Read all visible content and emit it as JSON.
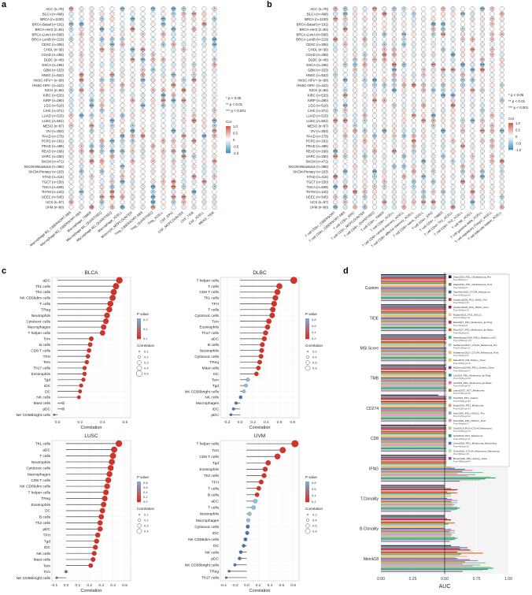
{
  "panel_labels": [
    "a",
    "b",
    "c",
    "d"
  ],
  "colorbar": {
    "title": "Cor",
    "ticks": [
      "1.0",
      "0.5",
      "0",
      "-0.5",
      "-1.0"
    ]
  },
  "significance_legend": [
    "* p < 0.05",
    "** p < 0.01",
    "*** p < 0.001"
  ],
  "c_legend": {
    "pvalue_title": "P value",
    "cor_title": "Correlation"
  },
  "chart_data": [
    {
      "type": "heatmap",
      "panel": "a",
      "rows": [
        "ACC (n=79)",
        "BLCA (n=408)",
        "BRCA (n=1100)",
        "BRCA-Basal (n=191)",
        "BRCA-Her2 (n=82)",
        "BRCA-LumA (n=568)",
        "BRCA-LumB (n=219)",
        "CESC (n=306)",
        "CHOL (n=36)",
        "COAD (n=458)",
        "DLBC (n=48)",
        "ESCA (n=185)",
        "GBM (n=153)",
        "HNSC (n=522)",
        "HNSC-HPV+ (n=98)",
        "HNSC-HPV- (n=422)",
        "KICH (n=66)",
        "KIRC (n=533)",
        "KIRP (n=290)",
        "LGG (n=516)",
        "LIHC (n=371)",
        "LUAD (n=515)",
        "LUSC (n=501)",
        "MESO (n=87)",
        "OV (n=303)",
        "PAAD (n=179)",
        "PCPG (n=181)",
        "PRAD (n=498)",
        "READ (n=166)",
        "SARC (n=260)",
        "SKCM (n=471)",
        "SKCM-Metastasis (n=368)",
        "SKCM-Primary (n=103)",
        "STAD (n=415)",
        "TGCT (n=150)",
        "THCA (n=509)",
        "THYM (n=120)",
        "UCEC (n=545)",
        "UCS (n=57)",
        "UVM (n=80)"
      ],
      "columns": [
        "Macrophage M1_CIBERSORT-ABS",
        "Macrophage M2_CIBERSORT-ABS",
        "Macrophage_TIMER",
        "Macrophage M1_QUANTISEQ",
        "Macrophage M2_QUANTISEQ",
        "Macrophage_XCELL",
        "Monocyte_MCPCOUNTER",
        "Treg_CIBERSORT-ABS",
        "Treg_QUANTISEQ",
        "Treg_XCELL",
        "CAF_EPIC",
        "CAF_MCPCOUNTER",
        "CAF_TIDE",
        "CAF_XCELL",
        "MDSC_TIDE"
      ],
      "range": [
        -1,
        1
      ]
    },
    {
      "type": "heatmap",
      "panel": "b",
      "rows": [
        "ACC (n=79)",
        "BLCA (n=408)",
        "BRCA (n=1100)",
        "BRCA-Basal (n=191)",
        "BRCA-Her2 (n=82)",
        "BRCA-LumA (n=568)",
        "BRCA-LumB (n=219)",
        "CESC (n=306)",
        "CHOL (n=36)",
        "COAD (n=458)",
        "DLBC (n=48)",
        "ESCA (n=185)",
        "GBM (n=153)",
        "HNSC (n=522)",
        "HNSC-HPV+ (n=98)",
        "HNSC-HPV- (n=422)",
        "KICH (n=66)",
        "KIRC (n=533)",
        "KIRP (n=290)",
        "LGG (n=516)",
        "LIHC (n=371)",
        "LUAD (n=515)",
        "LUSC (n=501)",
        "MESO (n=87)",
        "OV (n=303)",
        "PAAD (n=179)",
        "PCPG (n=181)",
        "PRAD (n=498)",
        "READ (n=166)",
        "SARC (n=260)",
        "SKCM (n=471)",
        "SKCM-Metastasis (n=368)",
        "SKCM-Primary (n=103)",
        "STAD (n=415)",
        "TGCT (n=150)",
        "THCA (n=509)",
        "THYM (n=120)",
        "UCEC (n=545)",
        "UCS (n=57)",
        "UVM (n=80)"
      ],
      "columns": [
        "T cell CD8+_CIBERSORT",
        "T cell CD8+_CIBERSORT-ABS",
        "T cell CD8+_EPIC",
        "T cell CD8+_MCPCOUNTER",
        "T cell CD8+_QUANTISEQ",
        "T cell CD8+_TIMER",
        "T cell CD8+_XCELL",
        "T cell CD8+ central memory_XCELL",
        "T cell CD8+ effector memory_XCELL",
        "T cell CD8+ naive_XCELL",
        "T cell CD4+_EPIC",
        "T cell CD4+_TIMER",
        "T cell CD4+ Th1_XCELL",
        "T cell CD4+ Th2_XCELL",
        "T cell NK_XCELL",
        "T cell gamma delta_XCELL",
        "T cell regulatory (Tregs)_XCELL",
        "T cell follicular helper_XCELL"
      ],
      "range": [
        -1,
        1
      ]
    },
    {
      "type": "scatter",
      "panel": "c",
      "title": "BLCA",
      "xlabel": "Correlation",
      "xlim": [
        -0.05,
        0.65
      ],
      "xticks": [
        "0.0",
        "0.2",
        "0.4",
        "0.6"
      ],
      "pvalue_legend": [
        "0.3",
        "0.2",
        "0.1"
      ],
      "size_legend": [
        "0.1",
        "0.2",
        "0.3",
        "0.4",
        "0.5"
      ],
      "categories": [
        "aDC",
        "Th1 cells",
        "Th2 cells",
        "NK CD56dim cells",
        "T cells",
        "TReg",
        "Neutrophils",
        "Cytotoxic cells",
        "Macrophages",
        "T helper cells",
        "Tcm",
        "B cells",
        "CD8 T cells",
        "TFH",
        "Tem",
        "Th17 cells",
        "Eosinophils",
        "Tgd",
        "iDC",
        "DC",
        "NK cells",
        "Mast cells",
        "pDC",
        "NK CD56bright cells"
      ],
      "values": [
        0.55,
        0.52,
        0.5,
        0.49,
        0.47,
        0.46,
        0.44,
        0.43,
        0.41,
        0.4,
        0.3,
        0.29,
        0.28,
        0.27,
        0.26,
        0.24,
        0.24,
        0.23,
        0.21,
        0.2,
        0.19,
        0.05,
        0.05,
        -0.03
      ]
    },
    {
      "type": "scatter",
      "panel": "c",
      "title": "DLBC",
      "xlabel": "Correlation",
      "xlim": [
        -0.3,
        0.9
      ],
      "xticks": [
        "-0.2",
        "0.0",
        "0.2",
        "0.4",
        "0.6",
        "0.8"
      ],
      "pvalue_legend": [
        "0.8",
        "0.6",
        "0.4",
        "0.2"
      ],
      "size_legend": [
        "0.2",
        "0.4",
        "0.6",
        "0.8"
      ],
      "categories": [
        "T helper cells",
        "T cells",
        "CD8 T cells",
        "Th1 cells",
        "TFH",
        "T cells",
        "Cytotoxic cells",
        "Tcm",
        "Eosinophils",
        "Th17 cells",
        "aDC",
        "B cells",
        "Neutrophils",
        "Cytotoxic cells",
        "TReg",
        "Mast cells",
        "DC",
        "Tem",
        "Tgd",
        "NK CD56bright cells",
        "NK cells",
        "Macrophages",
        "iDC",
        "pDC"
      ],
      "values": [
        0.82,
        0.6,
        0.57,
        0.54,
        0.52,
        0.5,
        0.49,
        0.44,
        0.42,
        0.39,
        0.37,
        0.34,
        0.33,
        0.32,
        0.3,
        0.28,
        0.25,
        0.12,
        0.09,
        0.06,
        0.01,
        -0.06,
        -0.1,
        -0.14
      ]
    },
    {
      "type": "scatter",
      "panel": "c",
      "title": "LUSC",
      "xlabel": "Correlation",
      "xlim": [
        -0.12,
        0.55
      ],
      "xticks": [
        "-0.1",
        "0.0",
        "0.1",
        "0.2",
        "0.3",
        "0.4",
        "0.5"
      ],
      "pvalue_legend": [
        "0.8",
        "0.6",
        "0.4",
        "0.2",
        "0.0"
      ],
      "size_legend": [
        "0.1",
        "0.2",
        "0.3",
        "0.4"
      ],
      "categories": [
        "Th1 cells",
        "aDC",
        "T cells",
        "Neutrophils",
        "Cytotoxic cells",
        "Macrophages",
        "CD8 T cells",
        "NK CD56dim cells",
        "T helper cells",
        "TReg",
        "Eosinophils",
        "DC",
        "B cells",
        "Th2 cells",
        "pDC",
        "TFH",
        "Tgd",
        "iDC",
        "NK cells",
        "Mast cells",
        "Tem",
        "Tcm",
        "NK CD56bright cells"
      ],
      "values": [
        0.45,
        0.41,
        0.4,
        0.39,
        0.38,
        0.37,
        0.36,
        0.35,
        0.34,
        0.33,
        0.32,
        0.31,
        0.3,
        0.29,
        0.29,
        0.27,
        0.26,
        0.25,
        0.24,
        0.23,
        0.21,
        0.0,
        -0.08
      ]
    },
    {
      "type": "scatter",
      "panel": "c",
      "title": "UVM",
      "xlabel": "Correlation",
      "xlim": [
        -0.45,
        0.9
      ],
      "xticks": [
        "-0.4",
        "-0.2",
        "0.0",
        "0.2",
        "0.4",
        "0.6",
        "0.8"
      ],
      "pvalue_legend": [
        "0.8",
        "0.6",
        "0.4",
        "0.2"
      ],
      "size_legend": [
        "0.2",
        "0.4",
        "0.6",
        "0.8"
      ],
      "categories": [
        "T helper cells",
        "Tcm",
        "CD8 T cells",
        "Tgd",
        "Eosinophils",
        "Th2 cells",
        "TFH",
        "T cells",
        "B cells",
        "aDC",
        "T cells",
        "Neutrophils",
        "Macrophages",
        "Cytotoxic cells",
        "iDC",
        "NK CD56dim cells",
        "DC",
        "NK cells",
        "pDC",
        "NK CD56bright cells",
        "TReg",
        "Th17 cells"
      ],
      "values": [
        0.83,
        0.62,
        0.53,
        0.37,
        0.32,
        0.3,
        0.25,
        0.21,
        0.18,
        0.15,
        0.12,
        0.05,
        0.03,
        0.02,
        0.01,
        -0.02,
        -0.05,
        -0.1,
        -0.12,
        -0.2,
        -0.3,
        -0.35
      ]
    },
    {
      "type": "bar",
      "panel": "d",
      "orientation": "horizontal",
      "xlabel": "AUC",
      "xlim": [
        0,
        1
      ],
      "xticks": [
        "0.00",
        "0.25",
        "0.50",
        "0.75",
        "1.00"
      ],
      "categories": [
        "Custom",
        "TIDE",
        "MSI.Score",
        "TMB",
        "CD274",
        "CD8",
        "IFNG",
        "T.Clonality",
        "B.Clonality",
        "Merck18"
      ],
      "series": [
        {
          "name": "Zhao2019_PD1_Glioblastoma_Pre Pos=8|Neg=7",
          "color": "#1f1f1f",
          "values": [
            0.95,
            0.58,
            0.55,
            0.52,
            0.45,
            0.6,
            0.53,
            0.5,
            0.5,
            0.55
          ]
        },
        {
          "name": "Zhao2019_PD1_Glioblastoma_Post Pos=4|Neg=5",
          "color": "#7a7a7a",
          "values": [
            0.9,
            0.6,
            0.5,
            0.5,
            0.55,
            0.58,
            0.6,
            0.5,
            0.5,
            0.62
          ]
        },
        {
          "name": "VanAllen2015_CTLA4_Melanoma Pos=14|Neg=25",
          "color": "#3a5fa0",
          "values": [
            0.85,
            0.63,
            0.62,
            0.66,
            0.6,
            0.66,
            0.65,
            0.5,
            0.5,
            0.68
          ]
        },
        {
          "name": "Uppaluri2020_PD1_HNSC_Pre Pos=8|Neg=15",
          "color": "#d73027",
          "values": [
            0.88,
            0.55,
            0.7,
            0.6,
            0.58,
            0.6,
            0.64,
            0.55,
            0.52,
            0.62
          ]
        },
        {
          "name": "Uppaluri2020_PD1_HNSC_Post Pos=5|Neg=13",
          "color": "#8e1b5a",
          "values": [
            0.8,
            0.7,
            0.6,
            0.55,
            0.62,
            0.7,
            0.72,
            0.6,
            0.55,
            0.7
          ]
        },
        {
          "name": "Ruppin2021_PD1_NSCLC Pos=11|Neg=11",
          "color": "#f0c27a",
          "values": [
            0.82,
            0.6,
            0.75,
            0.62,
            0.66,
            0.74,
            0.7,
            0.58,
            0.55,
            0.72
          ]
        },
        {
          "name": "Riaz2017_PD1_Melanoma_Ipi.Prog Pos=4|Neg=6",
          "color": "#c51b3c",
          "values": [
            0.78,
            0.56,
            0.5,
            0.5,
            0.56,
            0.62,
            0.58,
            0.52,
            0.5,
            0.6
          ]
        },
        {
          "name": "Riaz2017_PD1_Melanoma_Ipi.Naive Pos=5|Neg=15",
          "color": "#d95f0e",
          "values": [
            0.85,
            0.7,
            0.95,
            0.66,
            0.62,
            0.8,
            0.78,
            0.6,
            0.58,
            0.8
          ]
        },
        {
          "name": "Mariathasan2018_PDL1_Bladder_mUC Pos=25|Neg=173",
          "color": "#41ab5d",
          "values": [
            0.7,
            0.52,
            0.55,
            0.62,
            0.6,
            0.64,
            0.62,
            0.55,
            0.53,
            0.63
          ]
        },
        {
          "name": "Nathanson2017_CTLA4_Melanoma_Pre Pos=11|Neg=12",
          "color": "#9ecae1",
          "values": [
            0.8,
            0.6,
            0.5,
            0.7,
            0.55,
            0.57,
            0.6,
            0.5,
            0.5,
            0.62
          ]
        },
        {
          "name": "Nathanson2017_CTLA4_Melanoma_Post Pos=4|Neg=11",
          "color": "#fdae6b",
          "values": [
            0.82,
            0.65,
            0.5,
            0.58,
            0.6,
            0.66,
            0.64,
            0.55,
            0.5,
            0.68
          ]
        },
        {
          "name": "Miao2018_ICB_Kidney_Clear Pos=15|Neg=12",
          "color": "#e6c229",
          "values": [
            0.75,
            0.55,
            0.5,
            0.52,
            0.54,
            0.56,
            0.55,
            0.5,
            0.5,
            0.58
          ]
        },
        {
          "name": "McDermott2018_PDL1_Kidney_Clear Pos=25|Neg=57",
          "color": "#6a51a3",
          "values": [
            0.68,
            0.56,
            0.52,
            0.54,
            0.58,
            0.6,
            0.58,
            0.52,
            0.5,
            0.6
          ]
        },
        {
          "name": "Liu2019_PD1_Melanoma_Ipi.Prog Pos=41|Neg=29",
          "color": "#2b8cbe",
          "values": [
            0.72,
            0.6,
            0.58,
            0.6,
            0.62,
            0.68,
            0.66,
            0.56,
            0.55,
            0.7
          ]
        },
        {
          "name": "Liu2019_PD1_Melanoma_Ipi.Naive Pos=31|Neg=33",
          "color": "#f768a1",
          "values": [
            0.8,
            0.66,
            0.6,
            0.64,
            0.68,
            0.74,
            0.72,
            0.6,
            0.58,
            0.76
          ]
        },
        {
          "name": "Lauss2017_ACT_Melanoma Pos=15|Neg=10",
          "color": "#a6761d",
          "values": [
            0.76,
            0.6,
            0.56,
            0.58,
            0.62,
            0.66,
            0.64,
            0.55,
            0.54,
            0.66
          ]
        },
        {
          "name": "Kim2019_PD1_Gastric Pos=12|Neg=33",
          "color": "#66c2a5",
          "values": [
            0.9,
            0.72,
            0.8,
            0.7,
            0.68,
            0.78,
            0.8,
            0.6,
            0.58,
            0.82
          ]
        },
        {
          "name": "Hugo2016_PD1_Melanoma Pos=15|Neg=13",
          "color": "#fc8d62",
          "values": [
            0.74,
            0.6,
            0.55,
            0.6,
            0.58,
            0.62,
            0.6,
            0.56,
            0.55,
            0.64
          ]
        },
        {
          "name": "Hwu2020_PD1_NSCLC_Pre Pos=12|Neg=12",
          "color": "#8da0cb",
          "values": [
            0.82,
            0.66,
            0.6,
            0.65,
            0.72,
            0.76,
            0.74,
            0.58,
            0.56,
            0.78
          ]
        },
        {
          "name": "Hwu2020_PD1_NSCLC_Post Pos=9|Neg=17",
          "color": "#e78ac3",
          "values": [
            0.78,
            0.62,
            0.58,
            0.62,
            0.66,
            0.7,
            0.68,
            0.56,
            0.55,
            0.72
          ]
        },
        {
          "name": "Gide2019_PD1+CTLA4_Melanoma Pos=19|Neg=13",
          "color": "#a6d854",
          "values": [
            0.88,
            0.7,
            0.62,
            0.64,
            0.8,
            0.84,
            0.86,
            0.6,
            0.58,
            0.86
          ]
        },
        {
          "name": "Gide2019_PD1_Melanoma Pos=21|Neg=11",
          "color": "#1b9e77",
          "values": [
            0.86,
            0.68,
            0.6,
            0.62,
            0.78,
            0.82,
            0.9,
            0.62,
            0.6,
            0.88
          ]
        },
        {
          "name": "Chen2016_PD1_Melanoma_Nanostring Pos=4|Neg=12",
          "color": "#377eb8",
          "values": [
            0.84,
            0.66,
            0.58,
            0.6,
            0.74,
            0.8,
            0.82,
            0.6,
            0.58,
            0.84
          ]
        },
        {
          "name": "Chen2016_CTLA4_Melanoma_Nanostring Pos=8|Neg=15",
          "color": "#b2df8a",
          "values": [
            0.8,
            0.62,
            0.56,
            0.58,
            0.7,
            0.76,
            0.78,
            0.58,
            0.56,
            0.8
          ]
        },
        {
          "name": "Braun2020_PD1_Kidney_Clear Pos=38|Neg=54",
          "color": "#984ea3",
          "values": [
            0.72,
            0.58,
            0.54,
            0.56,
            0.6,
            0.64,
            0.62,
            0.55,
            0.54,
            0.64
          ]
        }
      ],
      "reference_line": 0.5,
      "reference_label": "Random"
    }
  ]
}
